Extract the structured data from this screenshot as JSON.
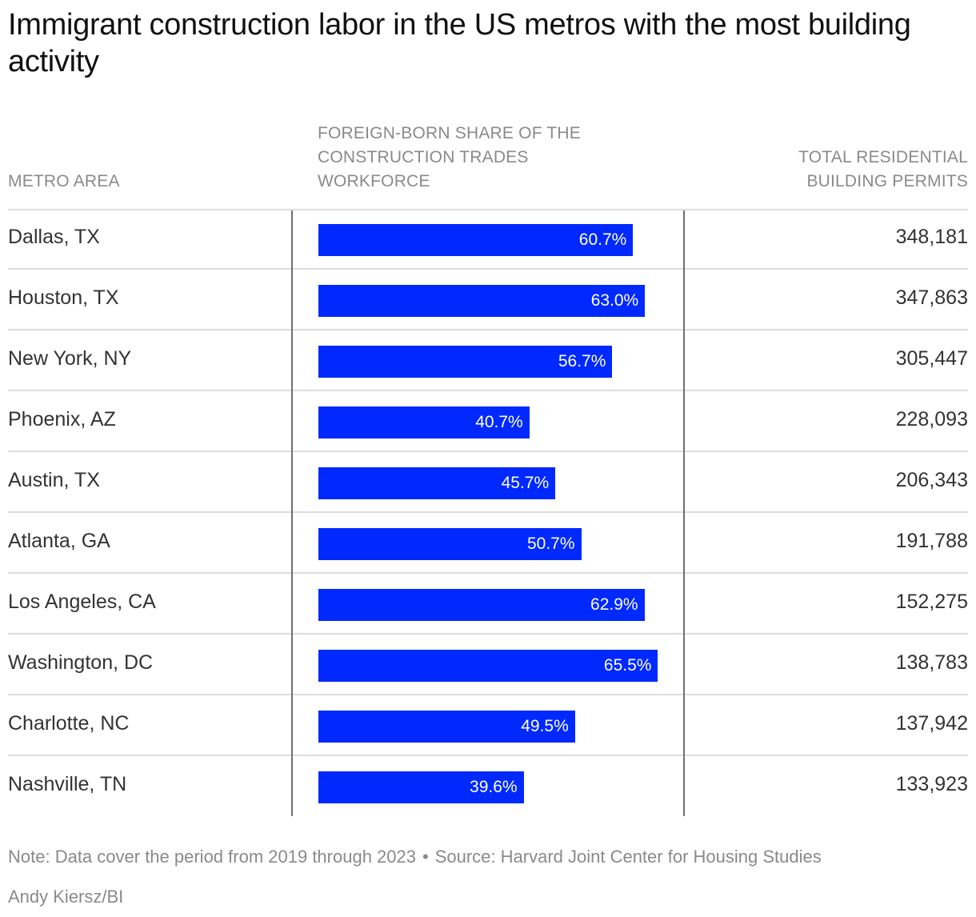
{
  "title": "Immigrant construction labor in the US metros with the most building activity",
  "headers": {
    "metro": "METRO AREA",
    "share": "FOREIGN-BORN SHARE OF THE CONSTRUCTION TRADES WORKFORCE",
    "permits": "TOTAL RESIDENTIAL BUILDING PERMITS"
  },
  "colors": {
    "bar": "#0029ff",
    "gridline": "#dddddd",
    "axis": "#6f6f6f"
  },
  "chart_data": {
    "type": "bar",
    "orientation": "horizontal",
    "title": "Immigrant construction labor in the US metros with the most building activity",
    "categories": [
      "Dallas, TX",
      "Houston, TX",
      "New York, NY",
      "Phoenix, AZ",
      "Austin, TX",
      "Atlanta, GA",
      "Los Angeles, CA",
      "Washington, DC",
      "Charlotte, NC",
      "Nashville, TN"
    ],
    "series": [
      {
        "name": "FOREIGN-BORN SHARE OF THE CONSTRUCTION TRADES WORKFORCE",
        "values": [
          60.7,
          63.0,
          56.7,
          40.7,
          45.7,
          50.7,
          62.9,
          65.5,
          49.5,
          39.6
        ],
        "unit": "%"
      }
    ],
    "value_labels": [
      "60.7%",
      "63.0%",
      "56.7%",
      "40.7%",
      "45.7%",
      "50.7%",
      "62.9%",
      "65.5%",
      "49.5%",
      "39.6%"
    ],
    "permits": [
      "348,181",
      "347,863",
      "305,447",
      "228,093",
      "206,343",
      "191,788",
      "152,275",
      "138,783",
      "137,942",
      "133,923"
    ],
    "xlim": [
      0,
      100
    ]
  },
  "footer": {
    "note": "Note: Data cover the period from 2019 through 2023",
    "separator": "•",
    "source": "Source: Harvard Joint Center for Housing Studies",
    "credit": "Andy Kiersz/BI"
  }
}
